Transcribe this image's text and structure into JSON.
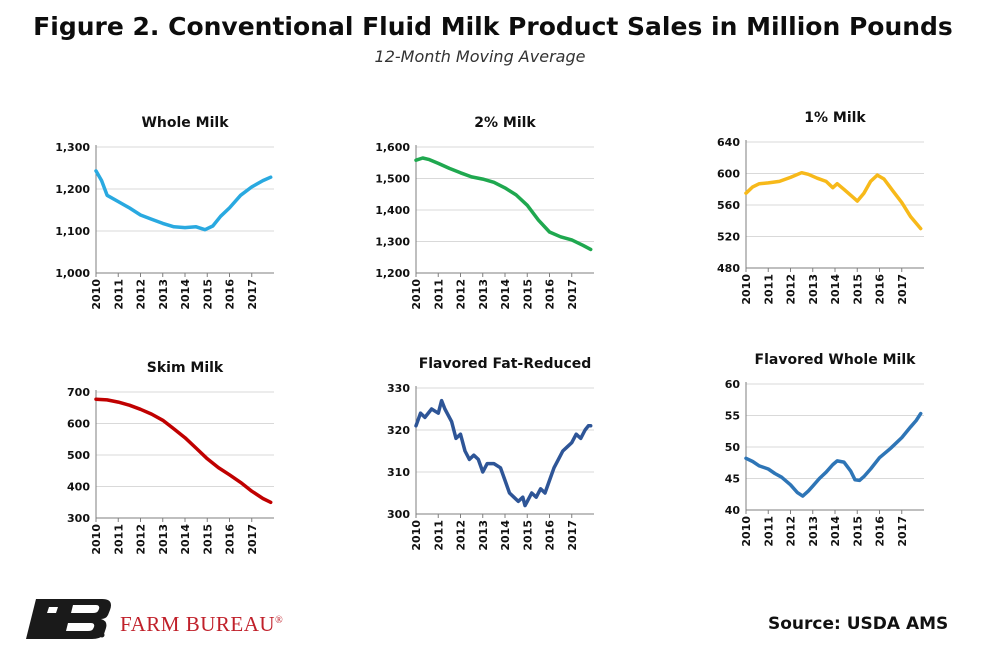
{
  "title": "Figure 2. Conventional Fluid Milk Product Sales in Million Pounds",
  "subtitle": "12-Month Moving Average",
  "source": "Source: USDA AMS",
  "brand": {
    "name": "FARM BUREAU",
    "mark": "®",
    "color": "#c0202a"
  },
  "chart_data": [
    {
      "type": "line",
      "title": "Whole Milk",
      "color": "#29a9e0",
      "ylim": [
        1000,
        1300
      ],
      "yticks": [
        1000,
        1100,
        1200,
        1300
      ],
      "ytick_labels": [
        "1,000",
        "1,100",
        "1,200",
        "1,300"
      ],
      "xticks": [
        "2010",
        "2011",
        "2012",
        "2013",
        "2014",
        "2015",
        "2016",
        "2017"
      ],
      "x": [
        2010.0,
        2010.25,
        2010.5,
        2011.0,
        2011.5,
        2012.0,
        2012.5,
        2013.0,
        2013.5,
        2014.0,
        2014.5,
        2014.9,
        2015.25,
        2015.6,
        2016.0,
        2016.5,
        2017.0,
        2017.5,
        2017.85
      ],
      "y": [
        1243,
        1220,
        1185,
        1170,
        1155,
        1138,
        1128,
        1118,
        1110,
        1108,
        1110,
        1103,
        1112,
        1135,
        1155,
        1185,
        1205,
        1220,
        1228
      ]
    },
    {
      "type": "line",
      "title": "2% Milk",
      "color": "#1fa84f",
      "ylim": [
        1200,
        1600
      ],
      "yticks": [
        1200,
        1300,
        1400,
        1500,
        1600
      ],
      "ytick_labels": [
        "1,200",
        "1,300",
        "1,400",
        "1,500",
        "1,600"
      ],
      "xticks": [
        "2010",
        "2011",
        "2012",
        "2013",
        "2014",
        "2015",
        "2016",
        "2017"
      ],
      "x": [
        2010.0,
        2010.3,
        2010.6,
        2011.0,
        2011.5,
        2012.0,
        2012.5,
        2013.0,
        2013.5,
        2014.0,
        2014.5,
        2015.0,
        2015.5,
        2016.0,
        2016.5,
        2017.0,
        2017.5,
        2017.85
      ],
      "y": [
        1558,
        1565,
        1560,
        1548,
        1532,
        1518,
        1505,
        1498,
        1488,
        1470,
        1448,
        1415,
        1368,
        1330,
        1315,
        1305,
        1288,
        1275
      ]
    },
    {
      "type": "line",
      "title": "1% Milk",
      "color": "#f7b91a",
      "ylim": [
        480,
        640
      ],
      "yticks": [
        480,
        520,
        560,
        600,
        640
      ],
      "ytick_labels": [
        "480",
        "520",
        "560",
        "600",
        "640"
      ],
      "xticks": [
        "2010",
        "2011",
        "2012",
        "2013",
        "2014",
        "2015",
        "2016",
        "2017"
      ],
      "x": [
        2010.0,
        2010.3,
        2010.6,
        2011.0,
        2011.5,
        2012.0,
        2012.5,
        2012.8,
        2013.2,
        2013.6,
        2013.9,
        2014.1,
        2014.4,
        2014.8,
        2015.0,
        2015.3,
        2015.6,
        2015.9,
        2016.2,
        2016.6,
        2017.0,
        2017.4,
        2017.85
      ],
      "y": [
        575,
        583,
        587,
        588,
        590,
        595,
        601,
        599,
        594,
        590,
        582,
        587,
        580,
        570,
        565,
        575,
        590,
        598,
        593,
        578,
        563,
        545,
        530
      ]
    },
    {
      "type": "line",
      "title": "Skim Milk",
      "color": "#c00000",
      "ylim": [
        300,
        700
      ],
      "yticks": [
        300,
        400,
        500,
        600,
        700
      ],
      "ytick_labels": [
        "300",
        "400",
        "500",
        "600",
        "700"
      ],
      "xticks": [
        "2010",
        "2011",
        "2012",
        "2013",
        "2014",
        "2015",
        "2016",
        "2017"
      ],
      "x": [
        2010.0,
        2010.5,
        2011.0,
        2011.5,
        2012.0,
        2012.5,
        2013.0,
        2013.5,
        2014.0,
        2014.5,
        2015.0,
        2015.5,
        2016.0,
        2016.5,
        2017.0,
        2017.5,
        2017.85
      ],
      "y": [
        677,
        675,
        668,
        658,
        645,
        630,
        610,
        583,
        555,
        522,
        488,
        460,
        437,
        413,
        385,
        362,
        350
      ]
    },
    {
      "type": "line",
      "title": "Flavored Fat-Reduced",
      "color": "#2e5597",
      "ylim": [
        300,
        330
      ],
      "yticks": [
        300,
        310,
        320,
        330
      ],
      "ytick_labels": [
        "300",
        "310",
        "320",
        "330"
      ],
      "xticks": [
        "2010",
        "2011",
        "2012",
        "2013",
        "2014",
        "2015",
        "2016",
        "2017"
      ],
      "x": [
        2010.0,
        2010.2,
        2010.4,
        2010.7,
        2011.0,
        2011.15,
        2011.3,
        2011.6,
        2011.8,
        2012.0,
        2012.2,
        2012.4,
        2012.6,
        2012.8,
        2013.0,
        2013.2,
        2013.5,
        2013.8,
        2014.0,
        2014.2,
        2014.4,
        2014.6,
        2014.8,
        2014.9,
        2015.0,
        2015.2,
        2015.4,
        2015.6,
        2015.8,
        2016.0,
        2016.2,
        2016.4,
        2016.6,
        2016.8,
        2017.0,
        2017.2,
        2017.4,
        2017.6,
        2017.75,
        2017.85
      ],
      "y": [
        321,
        324,
        323,
        325,
        324,
        327,
        325,
        322,
        318,
        319,
        315,
        313,
        314,
        313,
        310,
        312,
        312,
        311,
        308,
        305,
        304,
        303,
        304,
        302,
        303,
        305,
        304,
        306,
        305,
        308,
        311,
        313,
        315,
        316,
        317,
        319,
        318,
        320,
        321,
        321
      ]
    },
    {
      "type": "line",
      "title": "Flavored Whole Milk",
      "color": "#2e75b6",
      "ylim": [
        40,
        60
      ],
      "yticks": [
        40,
        45,
        50,
        55,
        60
      ],
      "ytick_labels": [
        "40",
        "45",
        "50",
        "55",
        "60"
      ],
      "xticks": [
        "2010",
        "2011",
        "2012",
        "2013",
        "2014",
        "2015",
        "2016",
        "2017"
      ],
      "x": [
        2010.0,
        2010.3,
        2010.6,
        2011.0,
        2011.3,
        2011.6,
        2012.0,
        2012.3,
        2012.55,
        2012.8,
        2013.0,
        2013.3,
        2013.6,
        2013.9,
        2014.1,
        2014.4,
        2014.7,
        2014.9,
        2015.1,
        2015.3,
        2015.6,
        2016.0,
        2016.5,
        2017.0,
        2017.4,
        2017.65,
        2017.85
      ],
      "y": [
        48.2,
        47.7,
        47.0,
        46.5,
        45.8,
        45.2,
        44.0,
        42.8,
        42.2,
        43.0,
        43.8,
        45.0,
        46.0,
        47.2,
        47.8,
        47.6,
        46.2,
        44.8,
        44.7,
        45.3,
        46.5,
        48.3,
        49.8,
        51.5,
        53.2,
        54.2,
        55.3
      ]
    }
  ]
}
